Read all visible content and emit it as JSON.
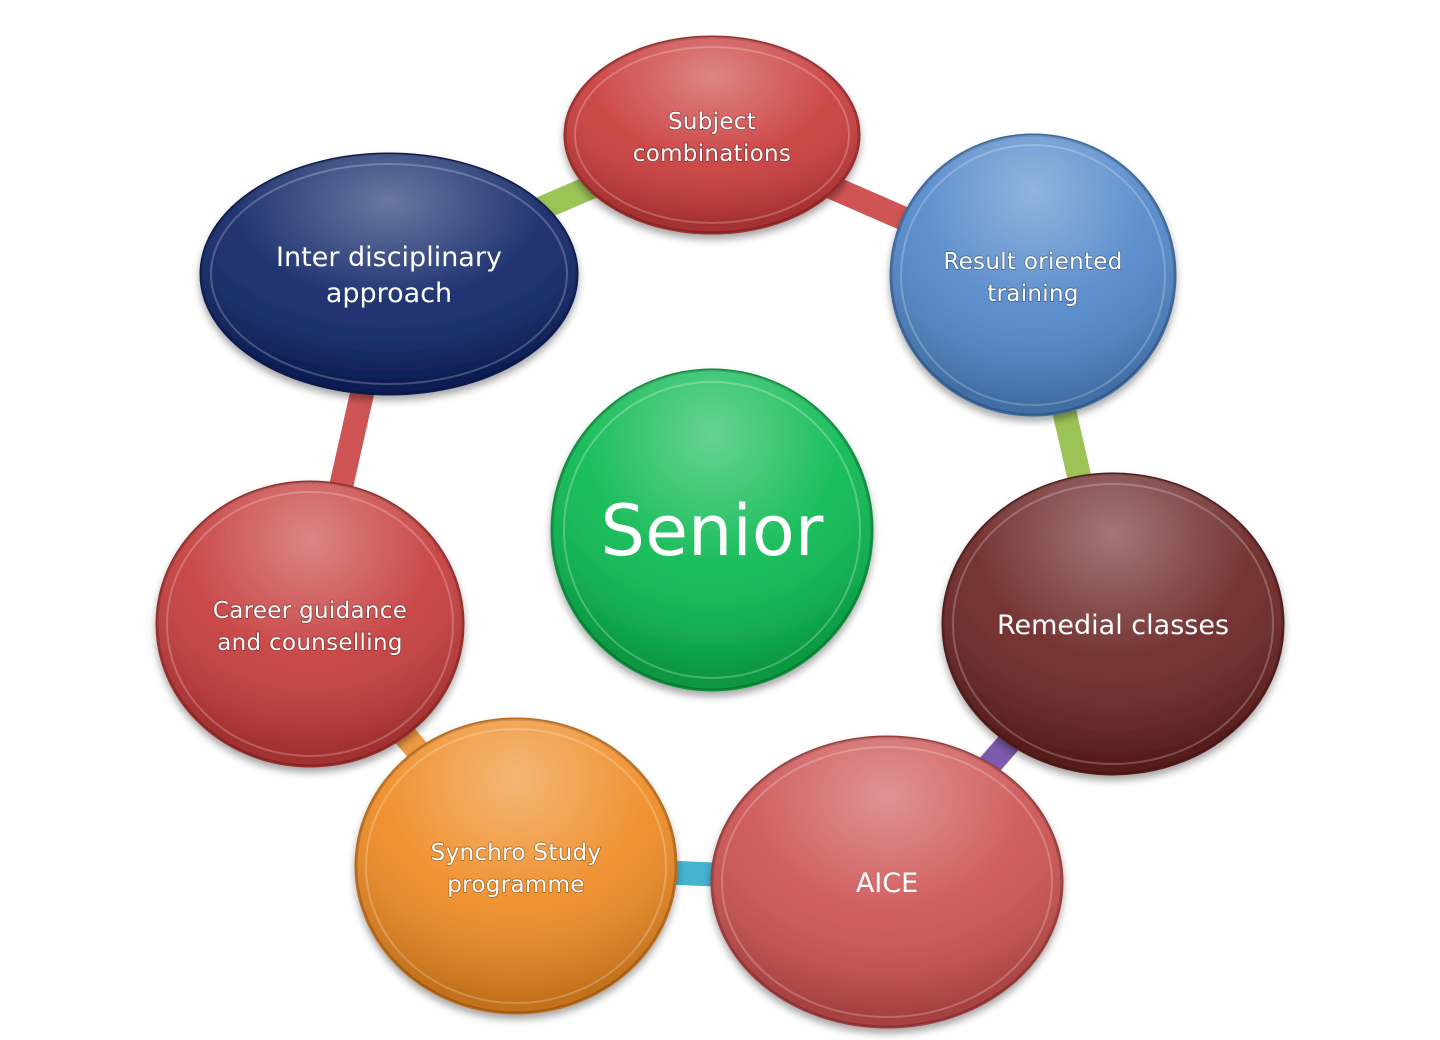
{
  "center": {
    "label": "Senior",
    "color": "#08b84f"
  },
  "nodes": [
    {
      "id": "subject-combinations",
      "lines": [
        "Subject",
        "combinations"
      ],
      "color": "#c93a3a",
      "shape": "oval"
    },
    {
      "id": "result-oriented-training",
      "lines": [
        "Result oriented",
        "training"
      ],
      "color": "#4f86c9",
      "shape": "circle"
    },
    {
      "id": "remedial-classes",
      "lines": [
        "Remedial classes"
      ],
      "color": "#6a2323",
      "shape": "oval"
    },
    {
      "id": "aice",
      "lines": [
        "AICE"
      ],
      "color": "#cc5050",
      "shape": "oval"
    },
    {
      "id": "synchro-study-programme",
      "lines": [
        "Synchro Study",
        "programme"
      ],
      "color": "#ee8a22",
      "shape": "circle"
    },
    {
      "id": "career-guidance",
      "lines": [
        "Career guidance",
        "and counselling"
      ],
      "color": "#c53a3a",
      "shape": "circle"
    },
    {
      "id": "inter-disciplinary-approach",
      "lines": [
        "Inter disciplinary",
        "approach"
      ],
      "color": "#0e2466",
      "shape": "oval"
    }
  ],
  "connectors": [
    {
      "from": "inter-disciplinary-approach",
      "to": "subject-combinations",
      "color": "#9bc356"
    },
    {
      "from": "subject-combinations",
      "to": "result-oriented-training",
      "color": "#cf5555"
    },
    {
      "from": "result-oriented-training",
      "to": "remedial-classes",
      "color": "#9bc356"
    },
    {
      "from": "remedial-classes",
      "to": "aice",
      "color": "#7d5bab"
    },
    {
      "from": "aice",
      "to": "synchro-study-programme",
      "color": "#46b3cf"
    },
    {
      "from": "synchro-study-programme",
      "to": "career-guidance",
      "color": "#ee9a45"
    },
    {
      "from": "career-guidance",
      "to": "inter-disciplinary-approach",
      "color": "#cf5555"
    }
  ]
}
